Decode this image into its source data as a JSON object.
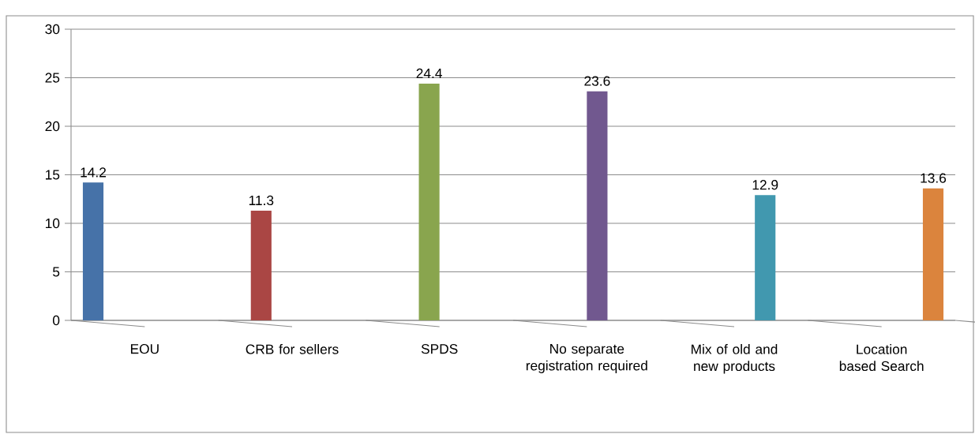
{
  "chart_data": {
    "type": "bar",
    "categories": [
      "EOU",
      "CRB for sellers",
      "SPDS",
      "No separate registration required",
      "Mix of old and new products",
      "Location based Search"
    ],
    "series": [
      {
        "color": "#4672a8",
        "values": [
          14.2,
          null,
          null,
          null,
          null,
          null
        ]
      },
      {
        "color": "#aa4644",
        "values": [
          null,
          11.3,
          null,
          null,
          null,
          null
        ]
      },
      {
        "color": "#89a54e",
        "values": [
          null,
          null,
          24.4,
          null,
          null,
          null
        ]
      },
      {
        "color": "#71588f",
        "values": [
          null,
          null,
          null,
          23.6,
          null,
          null
        ]
      },
      {
        "color": "#4198af",
        "values": [
          null,
          null,
          null,
          null,
          12.9,
          null
        ]
      },
      {
        "color": "#db843d",
        "values": [
          null,
          null,
          null,
          null,
          null,
          13.6
        ]
      }
    ],
    "ylim": [
      0,
      30
    ],
    "yticks": [
      0,
      5,
      10,
      15,
      20,
      25,
      30
    ],
    "grid": "y",
    "data_labels": true
  }
}
